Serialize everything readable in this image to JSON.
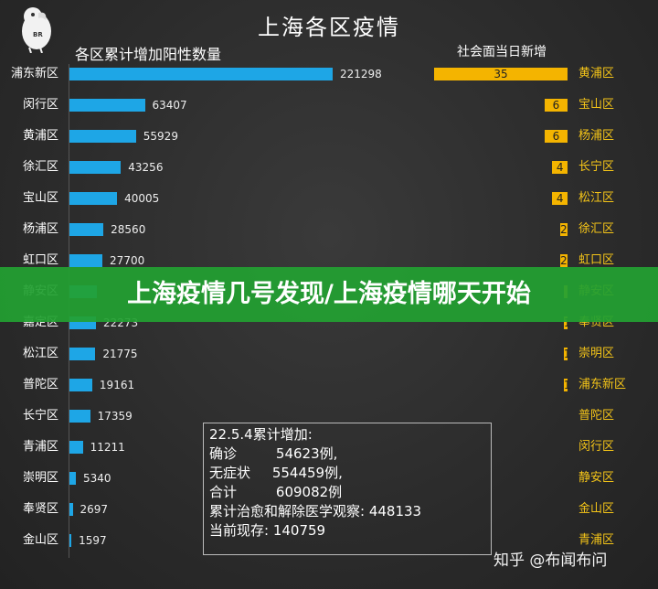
{
  "header": {
    "title": "上海各区疫情",
    "left_heading": "各区累计增加阳性数量",
    "right_heading": "社会面当日新增"
  },
  "logo": {
    "text": "BR"
  },
  "banner": {
    "text": "上海疫情几号发现/上海疫情哪天开始"
  },
  "note": {
    "lines": [
      "22.5.4累计增加:",
      "确诊         54623例,",
      "无症状     554459例,",
      "合计         609082例",
      "累计治愈和解除医学观察: 448133",
      "当前现存: 140759"
    ]
  },
  "watermark": {
    "text": "知乎 @布闻布问"
  },
  "chart_data": [
    {
      "type": "bar",
      "orientation": "horizontal",
      "title": "各区累计增加阳性数量",
      "categories": [
        "浦东新区",
        "闵行区",
        "黄浦区",
        "徐汇区",
        "宝山区",
        "杨浦区",
        "虹口区",
        "静安区",
        "嘉定区",
        "松江区",
        "普陀区",
        "长宁区",
        "青浦区",
        "崇明区",
        "奉贤区",
        "金山区"
      ],
      "values": [
        221298,
        63407,
        55929,
        43256,
        40005,
        28560,
        27700,
        23000,
        22273,
        21775,
        19161,
        17359,
        11211,
        5340,
        2697,
        1597
      ],
      "labels": [
        "221298",
        "63407",
        "55929",
        "43256",
        "40005",
        "28560",
        "27700",
        "",
        "22273",
        "21775",
        "19161",
        "17359",
        "11211",
        "5340",
        "2697",
        "1597"
      ],
      "color": "#1ea6e6",
      "grid": false
    },
    {
      "type": "bar",
      "orientation": "horizontal",
      "title": "社会面当日新增",
      "categories": [
        "黄浦区",
        "宝山区",
        "杨浦区",
        "长宁区",
        "松江区",
        "徐汇区",
        "虹口区",
        "静安区",
        "奉贤区",
        "崇明区",
        "浦东新区",
        "普陀区",
        "闵行区",
        "静安区",
        "金山区",
        "青浦区"
      ],
      "values": [
        35,
        6,
        6,
        4,
        4,
        2,
        2,
        1,
        1,
        1,
        1,
        0,
        0,
        0,
        0,
        0
      ],
      "labels": [
        "35",
        "6",
        "6",
        "4",
        "4",
        "2",
        "2",
        "",
        "1",
        "1",
        "1",
        "",
        "",
        "",
        "",
        ""
      ],
      "color": "#f4b400",
      "grid": false
    }
  ]
}
